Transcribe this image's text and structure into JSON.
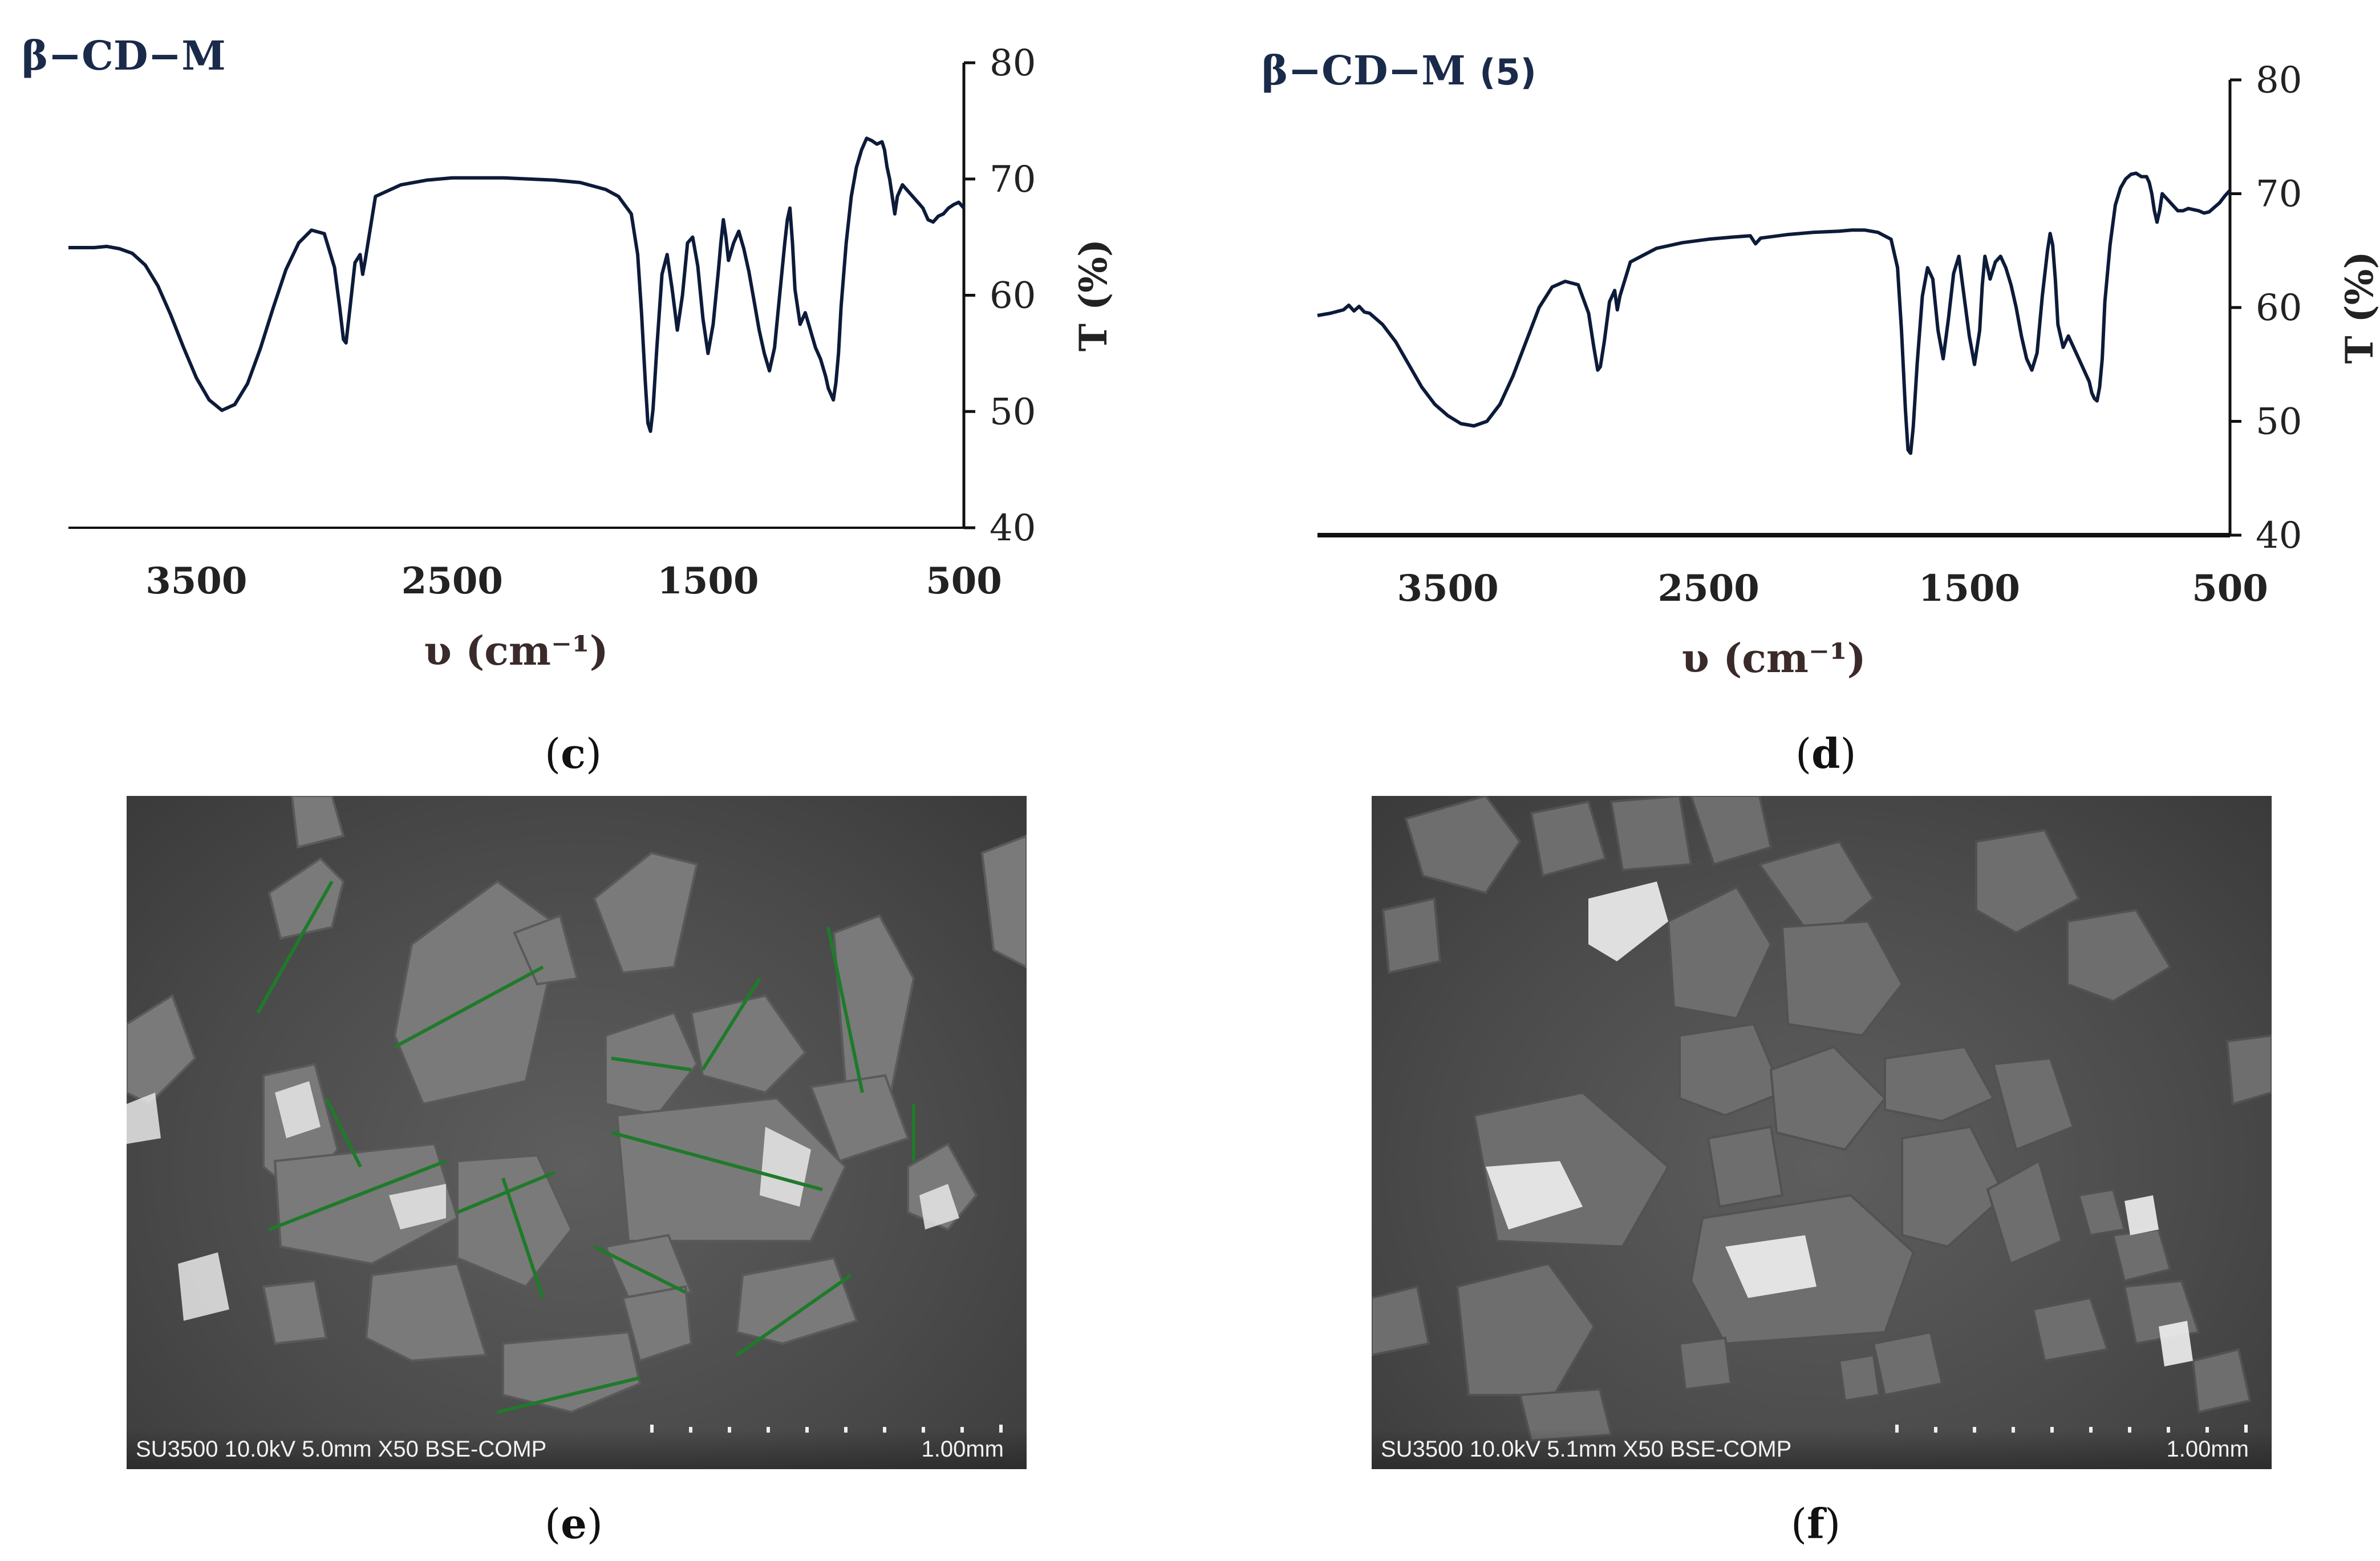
{
  "chart_data": [
    {
      "type": "line",
      "title": "β−CD−M",
      "title_suffix": "",
      "xlabel": "υ (cm⁻¹)",
      "ylabel": "T (%)",
      "xlim": [
        4000,
        500
      ],
      "ylim": [
        40,
        80
      ],
      "x_ticks": [
        3500,
        2500,
        1500,
        500
      ],
      "y_ticks": [
        40,
        50,
        60,
        70,
        80
      ],
      "line_color": "#0d1b3a",
      "series": [
        {
          "x": [
            4000,
            3900,
            3850,
            3800,
            3750,
            3700,
            3650,
            3600,
            3550,
            3500,
            3450,
            3400,
            3350,
            3300,
            3250,
            3200,
            3150,
            3100,
            3050,
            3000,
            2960,
            2940,
            2925,
            2915,
            2900,
            2880,
            2860,
            2850,
            2840,
            2800,
            2700,
            2600,
            2500,
            2400,
            2300,
            2200,
            2100,
            2000,
            1950,
            1900,
            1850,
            1800,
            1775,
            1760,
            1745,
            1735,
            1725,
            1715,
            1700,
            1680,
            1660,
            1640,
            1620,
            1600,
            1580,
            1560,
            1540,
            1520,
            1500,
            1480,
            1460,
            1450,
            1440,
            1430,
            1420,
            1400,
            1380,
            1360,
            1340,
            1320,
            1300,
            1280,
            1260,
            1240,
            1220,
            1200,
            1190,
            1180,
            1170,
            1160,
            1140,
            1120,
            1100,
            1080,
            1060,
            1040,
            1030,
            1020,
            1010,
            1000,
            990,
            980,
            960,
            940,
            920,
            900,
            880,
            860,
            840,
            820,
            810,
            800,
            790,
            780,
            770,
            760,
            740,
            720,
            700,
            680,
            660,
            640,
            620,
            600,
            580,
            560,
            540,
            520,
            500
          ],
          "y": [
            64.1,
            64.1,
            64.2,
            64.0,
            63.6,
            62.6,
            60.8,
            58.3,
            55.5,
            52.9,
            51.0,
            50.1,
            50.6,
            52.4,
            55.4,
            58.9,
            62.2,
            64.5,
            65.6,
            65.3,
            62.4,
            59.0,
            56.2,
            55.9,
            58.8,
            62.8,
            63.5,
            61.8,
            63.0,
            68.5,
            69.5,
            69.9,
            70.1,
            70.1,
            70.1,
            70.0,
            69.9,
            69.7,
            69.4,
            69.1,
            68.5,
            67.0,
            63.5,
            58.5,
            52.5,
            49.0,
            48.3,
            50.2,
            55.5,
            61.8,
            63.5,
            60.5,
            57.0,
            60.0,
            64.5,
            65.0,
            62.5,
            58.0,
            55.0,
            57.5,
            62.0,
            64.5,
            66.5,
            65.0,
            63.0,
            64.5,
            65.5,
            64.0,
            62.0,
            59.5,
            57.0,
            55.0,
            53.5,
            55.5,
            60.0,
            64.5,
            66.5,
            67.5,
            64.5,
            60.5,
            57.5,
            58.5,
            57.0,
            55.5,
            54.5,
            53.0,
            52.0,
            51.5,
            51.0,
            52.5,
            55.0,
            59.0,
            64.5,
            68.5,
            71.0,
            72.5,
            73.5,
            73.3,
            73.0,
            73.2,
            72.5,
            71.0,
            70.0,
            68.5,
            67.0,
            68.5,
            69.5,
            69.0,
            68.5,
            68.0,
            67.5,
            66.5,
            66.3,
            66.8,
            67.0,
            67.5,
            67.8,
            68.0,
            67.5
          ]
        }
      ]
    },
    {
      "type": "line",
      "title": "β−CD−M",
      "title_suffix": "(5)",
      "xlabel": "υ (cm⁻¹)",
      "ylabel": "T (%)",
      "xlim": [
        4000,
        500
      ],
      "ylim": [
        40,
        80
      ],
      "x_ticks": [
        3500,
        2500,
        1500,
        500
      ],
      "y_ticks": [
        40,
        50,
        60,
        70,
        80
      ],
      "line_color": "#0d1b3a",
      "series": [
        {
          "x": [
            4000,
            3950,
            3900,
            3880,
            3860,
            3840,
            3820,
            3800,
            3750,
            3700,
            3650,
            3600,
            3550,
            3500,
            3450,
            3400,
            3350,
            3300,
            3250,
            3200,
            3150,
            3100,
            3050,
            3000,
            2960,
            2940,
            2925,
            2915,
            2900,
            2880,
            2860,
            2850,
            2840,
            2800,
            2700,
            2600,
            2500,
            2400,
            2340,
            2320,
            2300,
            2200,
            2100,
            2000,
            1950,
            1900,
            1850,
            1800,
            1775,
            1760,
            1745,
            1735,
            1725,
            1715,
            1700,
            1680,
            1660,
            1640,
            1620,
            1600,
            1580,
            1560,
            1540,
            1520,
            1500,
            1480,
            1460,
            1450,
            1440,
            1430,
            1420,
            1400,
            1380,
            1360,
            1340,
            1320,
            1300,
            1280,
            1260,
            1240,
            1220,
            1200,
            1190,
            1180,
            1170,
            1160,
            1140,
            1120,
            1100,
            1080,
            1060,
            1040,
            1030,
            1020,
            1010,
            1000,
            990,
            980,
            960,
            940,
            920,
            900,
            880,
            860,
            840,
            820,
            810,
            800,
            790,
            780,
            770,
            760,
            740,
            720,
            700,
            680,
            660,
            640,
            620,
            600,
            580,
            560,
            540,
            520,
            500
          ],
          "y": [
            59.3,
            59.5,
            59.8,
            60.2,
            59.7,
            60.1,
            59.6,
            59.5,
            58.5,
            57.0,
            55.0,
            53.0,
            51.5,
            50.5,
            49.8,
            49.6,
            50.0,
            51.5,
            54.0,
            57.0,
            60.0,
            61.8,
            62.3,
            62.0,
            59.5,
            56.5,
            54.5,
            54.8,
            57.0,
            60.5,
            61.5,
            59.8,
            61.0,
            64.0,
            65.2,
            65.7,
            66.0,
            66.2,
            66.3,
            65.6,
            66.1,
            66.4,
            66.6,
            66.7,
            66.8,
            66.8,
            66.6,
            66.0,
            63.5,
            58.0,
            51.0,
            47.5,
            47.2,
            49.5,
            55.0,
            61.0,
            63.5,
            62.5,
            58.0,
            55.5,
            59.0,
            63.0,
            64.5,
            61.0,
            57.5,
            55.0,
            58.0,
            62.0,
            64.5,
            63.5,
            62.5,
            64.0,
            64.5,
            63.5,
            62.0,
            60.0,
            57.5,
            55.5,
            54.5,
            56.0,
            61.0,
            65.0,
            66.5,
            65.5,
            62.5,
            58.5,
            56.5,
            57.5,
            56.5,
            55.5,
            54.5,
            53.5,
            52.5,
            52.0,
            51.8,
            53.0,
            55.5,
            60.5,
            65.5,
            69.0,
            70.5,
            71.3,
            71.7,
            71.8,
            71.5,
            71.5,
            71.0,
            70.0,
            68.5,
            67.5,
            68.5,
            70.0,
            69.5,
            69.0,
            68.5,
            68.5,
            68.7,
            68.6,
            68.5,
            68.3,
            68.4,
            68.8,
            69.2,
            69.8,
            70.3
          ]
        }
      ]
    }
  ],
  "captions": {
    "c": "c",
    "d": "d",
    "e": "e",
    "f": "f"
  },
  "sem_left": {
    "info": "SU3500 10.0kV 5.0mm X50 BSE-COMP",
    "scale": "1.00mm"
  },
  "sem_right": {
    "info": "SU3500 10.0kV 5.1mm X50 BSE-COMP",
    "scale": "1.00mm"
  }
}
